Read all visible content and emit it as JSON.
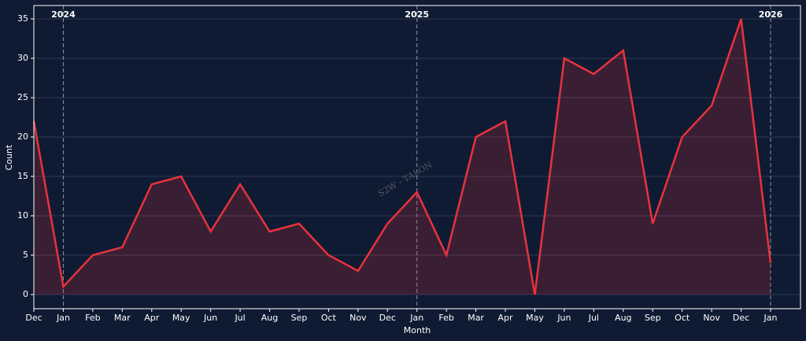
{
  "chart_data": {
    "type": "area",
    "xlabel": "Month",
    "ylabel": "Count",
    "categories": [
      "Dec",
      "Jan",
      "Feb",
      "Mar",
      "Apr",
      "May",
      "Jun",
      "Jul",
      "Aug",
      "Sep",
      "Oct",
      "Nov",
      "Dec",
      "Jan",
      "Feb",
      "Mar",
      "Apr",
      "May",
      "Jun",
      "Jul",
      "Aug",
      "Sep",
      "Oct",
      "Nov",
      "Dec",
      "Jan"
    ],
    "series": [
      {
        "name": "Count",
        "color": "#e8323c",
        "values": [
          22,
          1,
          5,
          6,
          14,
          15,
          8,
          14,
          8,
          9,
          5,
          3,
          9,
          13,
          5,
          20,
          22,
          0,
          30,
          28,
          31,
          9,
          20,
          24,
          35,
          4
        ]
      }
    ],
    "year_markers": [
      {
        "label": "2024",
        "category_index": 1
      },
      {
        "label": "2025",
        "category_index": 13
      },
      {
        "label": "2026",
        "category_index": 25
      }
    ],
    "watermark": "S2W - TALON",
    "ylim": [
      -1.8,
      36.7
    ],
    "yticks": [
      0,
      5,
      10,
      15,
      20,
      25,
      30,
      35
    ],
    "grid": true
  }
}
